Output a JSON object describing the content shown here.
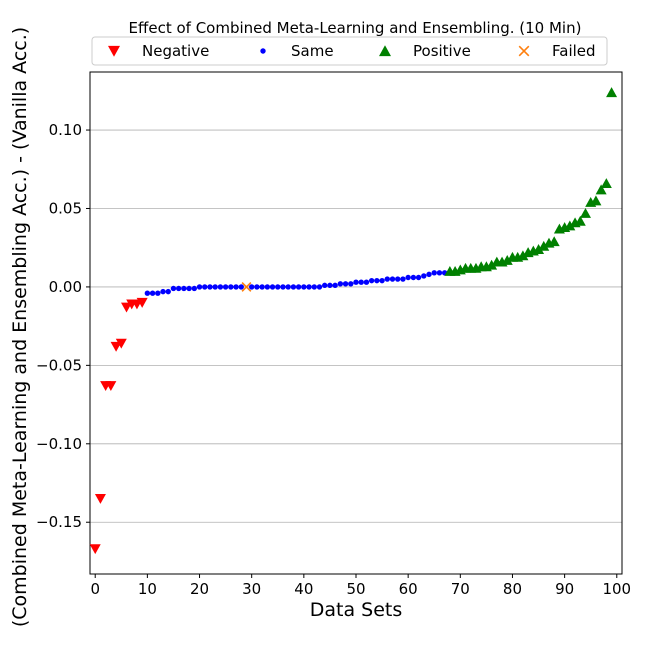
{
  "chart_data": {
    "type": "scatter",
    "title": "Effect of Combined Meta-Learning and Ensembling. (10 Min)",
    "xlabel": "Data Sets",
    "ylabel": "(Combined Meta-Learning and Ensembling Acc.) - (Vanilla Acc.)",
    "xlim": [
      -1,
      101
    ],
    "ylim": [
      -0.183,
      0.137
    ],
    "xticks": [
      0,
      10,
      20,
      30,
      40,
      50,
      60,
      70,
      80,
      90,
      100
    ],
    "yticks": [
      -0.15,
      -0.1,
      -0.05,
      0.0,
      0.05,
      0.1
    ],
    "ytick_labels": [
      "−0.15",
      "−0.10",
      "−0.05",
      "0.00",
      "0.05",
      "0.10"
    ],
    "grid": "horizontal",
    "legend_position": "top",
    "series": [
      {
        "name": "Negative",
        "marker": "triangle-down",
        "color": "#ff0000",
        "x": [
          0,
          1,
          2,
          3,
          4,
          5,
          6,
          7,
          8,
          9
        ],
        "y": [
          -0.167,
          -0.135,
          -0.063,
          -0.063,
          -0.038,
          -0.036,
          -0.013,
          -0.011,
          -0.011,
          -0.01
        ]
      },
      {
        "name": "Same",
        "marker": "circle",
        "color": "#0000ff",
        "x": [
          10,
          11,
          12,
          13,
          14,
          15,
          16,
          17,
          18,
          19,
          20,
          21,
          22,
          23,
          24,
          25,
          26,
          27,
          28,
          30,
          31,
          32,
          33,
          34,
          35,
          36,
          37,
          38,
          39,
          40,
          41,
          42,
          43,
          44,
          45,
          46,
          47,
          48,
          49,
          50,
          51,
          52,
          53,
          54,
          55,
          56,
          57,
          58,
          59,
          60,
          61,
          62,
          63,
          64,
          65,
          66,
          67
        ],
        "y": [
          -0.004,
          -0.004,
          -0.004,
          -0.003,
          -0.003,
          -0.001,
          -0.001,
          -0.001,
          -0.001,
          -0.001,
          0.0,
          0.0,
          0.0,
          0.0,
          0.0,
          0.0,
          0.0,
          0.0,
          0.0,
          0.0,
          0.0,
          0.0,
          0.0,
          0.0,
          0.0,
          0.0,
          0.0,
          0.0,
          0.0,
          0.0,
          0.0,
          0.0,
          0.0,
          0.001,
          0.001,
          0.001,
          0.002,
          0.002,
          0.002,
          0.003,
          0.003,
          0.003,
          0.004,
          0.004,
          0.004,
          0.005,
          0.005,
          0.005,
          0.005,
          0.006,
          0.006,
          0.006,
          0.007,
          0.008,
          0.009,
          0.009,
          0.009
        ]
      },
      {
        "name": "Positive",
        "marker": "triangle-up",
        "color": "#008000",
        "x": [
          68,
          69,
          70,
          71,
          72,
          73,
          74,
          75,
          76,
          77,
          78,
          79,
          80,
          81,
          82,
          83,
          84,
          85,
          86,
          87,
          88,
          89,
          90,
          91,
          92,
          93,
          94,
          95,
          96,
          97,
          98,
          99
        ],
        "y": [
          0.01,
          0.01,
          0.011,
          0.012,
          0.012,
          0.012,
          0.013,
          0.013,
          0.014,
          0.016,
          0.016,
          0.017,
          0.019,
          0.019,
          0.02,
          0.022,
          0.023,
          0.024,
          0.026,
          0.028,
          0.029,
          0.037,
          0.038,
          0.039,
          0.041,
          0.042,
          0.047,
          0.054,
          0.055,
          0.062,
          0.066,
          0.124
        ]
      },
      {
        "name": "Failed",
        "marker": "x",
        "color": "#ff7f0e",
        "x": [
          29
        ],
        "y": [
          0.0
        ]
      }
    ]
  }
}
